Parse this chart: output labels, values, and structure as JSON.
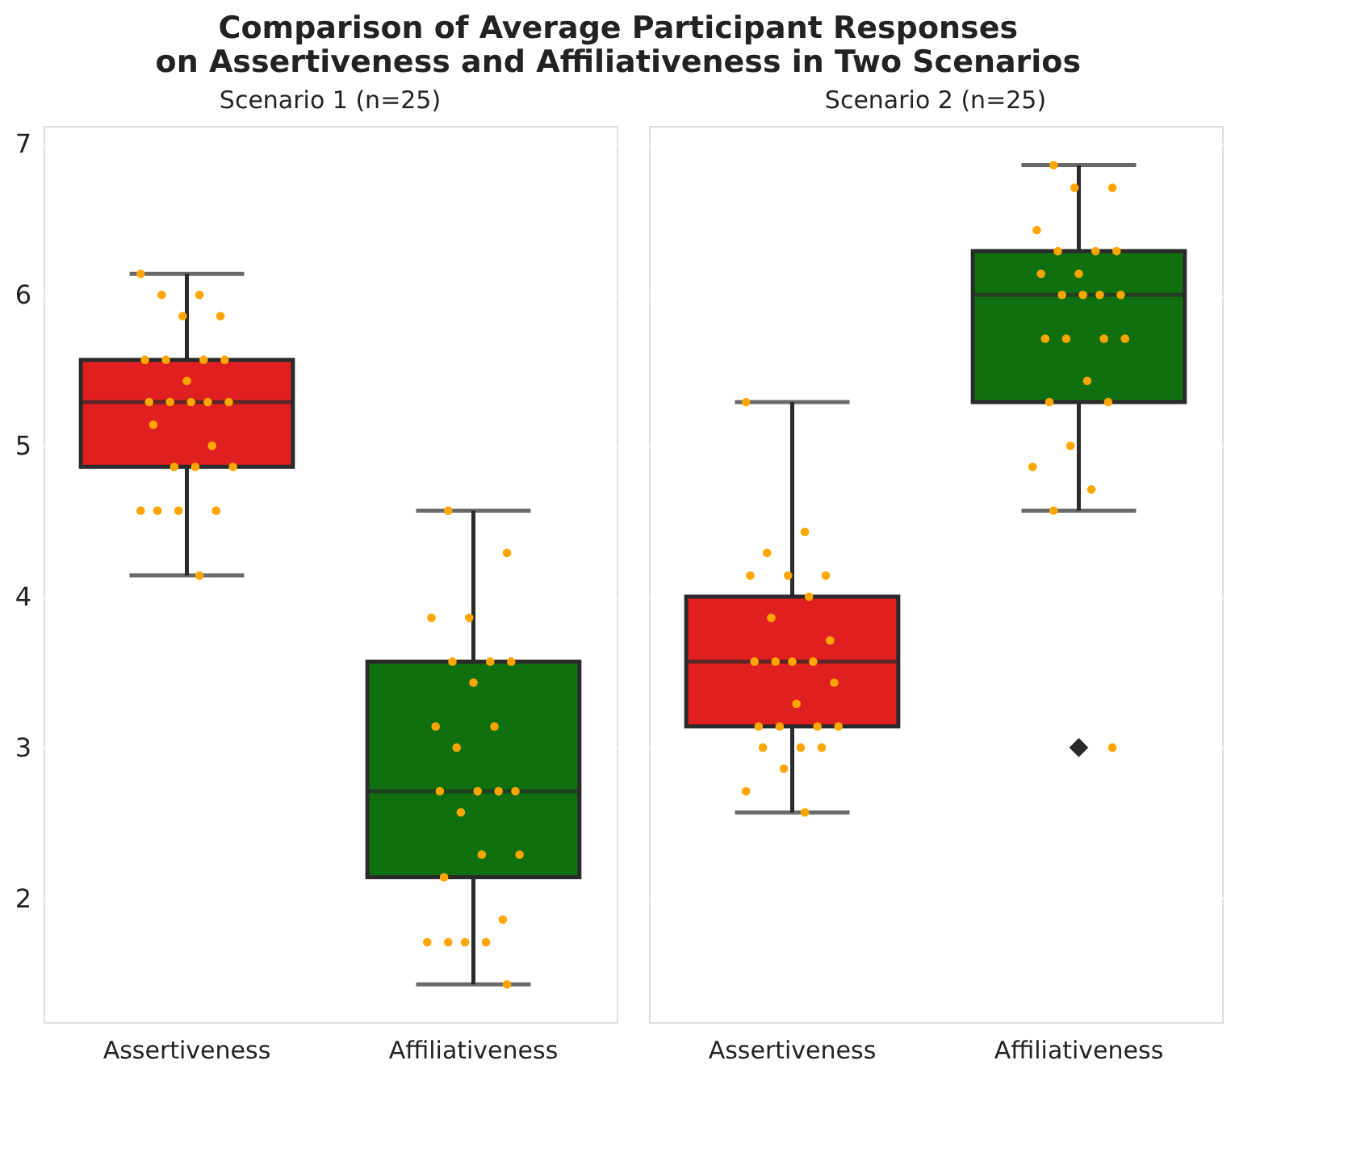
{
  "chart_data": [
    {
      "type": "box",
      "title": "Comparison of Average Participant Responses\non Assertiveness and Affiliativeness in Two Scenarios",
      "subtitle": "Scenario 1 (n=25)",
      "categories": [
        "Assertiveness",
        "Affiliativeness"
      ],
      "colors": [
        "#e02020",
        "#107010"
      ],
      "boxes": [
        {
          "low": 4.14,
          "q1": 4.86,
          "median": 5.29,
          "q3": 5.57,
          "high": 6.14
        },
        {
          "low": 1.43,
          "q1": 2.14,
          "median": 2.71,
          "q3": 3.57,
          "high": 4.57
        }
      ],
      "series": [
        {
          "type": "scatter",
          "color": "#ffa500",
          "x": [
            "Assertiveness",
            "Assertiveness",
            "Assertiveness",
            "Assertiveness",
            "Assertiveness",
            "Assertiveness",
            "Assertiveness",
            "Assertiveness",
            "Assertiveness",
            "Assertiveness",
            "Assertiveness",
            "Assertiveness",
            "Assertiveness",
            "Assertiveness",
            "Assertiveness",
            "Assertiveness",
            "Assertiveness",
            "Assertiveness",
            "Assertiveness",
            "Assertiveness",
            "Assertiveness",
            "Assertiveness",
            "Assertiveness",
            "Assertiveness",
            "Assertiveness",
            "Affiliativeness",
            "Affiliativeness",
            "Affiliativeness",
            "Affiliativeness",
            "Affiliativeness",
            "Affiliativeness",
            "Affiliativeness",
            "Affiliativeness",
            "Affiliativeness",
            "Affiliativeness",
            "Affiliativeness",
            "Affiliativeness",
            "Affiliativeness",
            "Affiliativeness",
            "Affiliativeness",
            "Affiliativeness",
            "Affiliativeness",
            "Affiliativeness",
            "Affiliativeness",
            "Affiliativeness",
            "Affiliativeness",
            "Affiliativeness",
            "Affiliativeness",
            "Affiliativeness",
            "Affiliativeness"
          ],
          "values": [
            6.14,
            6.0,
            6.0,
            5.86,
            5.86,
            5.57,
            5.57,
            5.57,
            5.57,
            5.43,
            5.29,
            5.29,
            5.29,
            5.29,
            5.29,
            5.14,
            5.0,
            4.86,
            4.86,
            4.86,
            4.57,
            4.57,
            4.57,
            4.57,
            4.14,
            4.57,
            4.29,
            3.86,
            3.86,
            3.57,
            3.57,
            3.57,
            3.43,
            3.14,
            3.14,
            3.0,
            2.71,
            2.71,
            2.71,
            2.71,
            2.57,
            2.29,
            2.29,
            2.14,
            1.86,
            1.71,
            1.71,
            1.71,
            1.71,
            1.43
          ]
        }
      ],
      "ylim": [
        1.18,
        7.12
      ],
      "yticks": [
        2,
        3,
        4,
        5,
        6,
        7
      ],
      "grid": "y",
      "legend": false
    },
    {
      "type": "box",
      "subtitle": "Scenario 2 (n=25)",
      "categories": [
        "Assertiveness",
        "Affiliativeness"
      ],
      "colors": [
        "#e02020",
        "#107010"
      ],
      "boxes": [
        {
          "low": 2.57,
          "q1": 3.14,
          "median": 3.57,
          "q3": 4.0,
          "high": 5.29
        },
        {
          "low": 4.57,
          "q1": 5.29,
          "median": 6.0,
          "q3": 6.29,
          "high": 6.86,
          "outliers": [
            3.0
          ]
        }
      ],
      "series": [
        {
          "type": "scatter",
          "color": "#ffa500",
          "x": [
            "Assertiveness",
            "Assertiveness",
            "Assertiveness",
            "Assertiveness",
            "Assertiveness",
            "Assertiveness",
            "Assertiveness",
            "Assertiveness",
            "Assertiveness",
            "Assertiveness",
            "Assertiveness",
            "Assertiveness",
            "Assertiveness",
            "Assertiveness",
            "Assertiveness",
            "Assertiveness",
            "Assertiveness",
            "Assertiveness",
            "Assertiveness",
            "Assertiveness",
            "Assertiveness",
            "Assertiveness",
            "Assertiveness",
            "Assertiveness",
            "Assertiveness",
            "Affiliativeness",
            "Affiliativeness",
            "Affiliativeness",
            "Affiliativeness",
            "Affiliativeness",
            "Affiliativeness",
            "Affiliativeness",
            "Affiliativeness",
            "Affiliativeness",
            "Affiliativeness",
            "Affiliativeness",
            "Affiliativeness",
            "Affiliativeness",
            "Affiliativeness",
            "Affiliativeness",
            "Affiliativeness",
            "Affiliativeness",
            "Affiliativeness",
            "Affiliativeness",
            "Affiliativeness",
            "Affiliativeness",
            "Affiliativeness",
            "Affiliativeness",
            "Affiliativeness",
            "Affiliativeness"
          ],
          "values": [
            5.29,
            4.43,
            4.29,
            4.14,
            4.14,
            4.14,
            4.0,
            3.86,
            3.71,
            3.57,
            3.57,
            3.57,
            3.57,
            3.43,
            3.29,
            3.14,
            3.14,
            3.14,
            3.14,
            3.0,
            3.0,
            3.0,
            2.86,
            2.71,
            2.57,
            6.86,
            6.71,
            6.71,
            6.43,
            6.29,
            6.29,
            6.29,
            6.14,
            6.14,
            6.0,
            6.0,
            6.0,
            6.0,
            5.71,
            5.71,
            5.71,
            5.71,
            5.43,
            5.29,
            5.29,
            5.0,
            4.86,
            4.71,
            4.57,
            3.0
          ]
        }
      ],
      "ylim": [
        1.18,
        7.12
      ],
      "yticks": [
        2,
        3,
        4,
        5,
        6,
        7
      ],
      "grid": "y",
      "legend": false,
      "tick_labels": "x"
    }
  ]
}
